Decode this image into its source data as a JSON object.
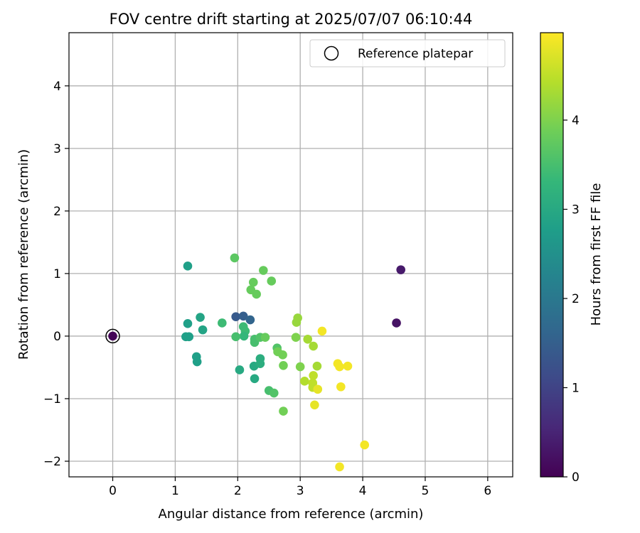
{
  "chart_data": {
    "type": "scatter",
    "title": "FOV centre drift starting at 2025/07/07 06:10:44",
    "xlabel": "Angular distance from reference (arcmin)",
    "ylabel": "Rotation from reference (arcmin)",
    "xlim": [
      -0.7,
      6.4
    ],
    "ylim": [
      -2.25,
      4.85
    ],
    "xticks": [
      0,
      1,
      2,
      3,
      4,
      5,
      6
    ],
    "yticks": [
      -2,
      -1,
      0,
      1,
      2,
      3,
      4
    ],
    "ytick_labels": [
      "−2",
      "−1",
      "0",
      "1",
      "2",
      "3",
      "4"
    ],
    "grid": true,
    "legend_position": "top-right",
    "legend": [
      {
        "label": "Reference platepar",
        "marker": "open-circle",
        "color": "#000000"
      }
    ],
    "reference_point": {
      "x": 0,
      "y": 0,
      "hours": 0
    },
    "colorbar": {
      "label": "Hours from first FF file",
      "range": [
        0,
        4.98
      ],
      "ticks": [
        0,
        1,
        2,
        3,
        4
      ],
      "colormap": "viridis"
    },
    "points": [
      {
        "x": 0.0,
        "y": 0.0,
        "hours": 0.05
      },
      {
        "x": 4.54,
        "y": 0.21,
        "hours": 0.25
      },
      {
        "x": 4.61,
        "y": 1.06,
        "hours": 0.35
      },
      {
        "x": 1.97,
        "y": 0.31,
        "hours": 1.4
      },
      {
        "x": 2.09,
        "y": 0.32,
        "hours": 1.5
      },
      {
        "x": 2.2,
        "y": 0.26,
        "hours": 1.6
      },
      {
        "x": 1.2,
        "y": 1.12,
        "hours": 2.8
      },
      {
        "x": 1.2,
        "y": 0.2,
        "hours": 2.8
      },
      {
        "x": 1.17,
        "y": -0.01,
        "hours": 2.8
      },
      {
        "x": 1.22,
        "y": -0.01,
        "hours": 2.8
      },
      {
        "x": 1.4,
        "y": 0.3,
        "hours": 2.9
      },
      {
        "x": 1.44,
        "y": 0.1,
        "hours": 2.9
      },
      {
        "x": 1.34,
        "y": -0.33,
        "hours": 2.8
      },
      {
        "x": 1.35,
        "y": -0.41,
        "hours": 2.8
      },
      {
        "x": 2.03,
        "y": -0.54,
        "hours": 3.0
      },
      {
        "x": 2.26,
        "y": -0.48,
        "hours": 3.0
      },
      {
        "x": 2.27,
        "y": -0.68,
        "hours": 3.0
      },
      {
        "x": 2.36,
        "y": -0.36,
        "hours": 3.1
      },
      {
        "x": 2.36,
        "y": -0.44,
        "hours": 3.1
      },
      {
        "x": 1.75,
        "y": 0.21,
        "hours": 3.4
      },
      {
        "x": 2.09,
        "y": 0.15,
        "hours": 3.4
      },
      {
        "x": 2.12,
        "y": 0.08,
        "hours": 3.4
      },
      {
        "x": 2.1,
        "y": 0.0,
        "hours": 3.3
      },
      {
        "x": 1.97,
        "y": -0.01,
        "hours": 3.5
      },
      {
        "x": 2.27,
        "y": -0.05,
        "hours": 3.5
      },
      {
        "x": 2.27,
        "y": -0.1,
        "hours": 3.5
      },
      {
        "x": 2.36,
        "y": -0.02,
        "hours": 3.6
      },
      {
        "x": 2.5,
        "y": -0.87,
        "hours": 3.5
      },
      {
        "x": 2.58,
        "y": -0.91,
        "hours": 3.6
      },
      {
        "x": 2.63,
        "y": -0.19,
        "hours": 3.6
      },
      {
        "x": 1.95,
        "y": 1.25,
        "hours": 3.7
      },
      {
        "x": 2.41,
        "y": 1.05,
        "hours": 3.8
      },
      {
        "x": 2.25,
        "y": 0.86,
        "hours": 3.8
      },
      {
        "x": 2.54,
        "y": 0.88,
        "hours": 3.8
      },
      {
        "x": 2.21,
        "y": 0.74,
        "hours": 3.8
      },
      {
        "x": 2.3,
        "y": 0.67,
        "hours": 3.8
      },
      {
        "x": 2.44,
        "y": -0.02,
        "hours": 3.8
      },
      {
        "x": 2.64,
        "y": -0.25,
        "hours": 3.9
      },
      {
        "x": 2.72,
        "y": -0.3,
        "hours": 3.9
      },
      {
        "x": 2.73,
        "y": -0.47,
        "hours": 3.9
      },
      {
        "x": 2.73,
        "y": -1.2,
        "hours": 3.9
      },
      {
        "x": 2.93,
        "y": -0.02,
        "hours": 4.0
      },
      {
        "x": 3.0,
        "y": -0.49,
        "hours": 4.0
      },
      {
        "x": 2.96,
        "y": 0.29,
        "hours": 4.2
      },
      {
        "x": 2.94,
        "y": 0.22,
        "hours": 4.2
      },
      {
        "x": 3.12,
        "y": -0.05,
        "hours": 4.3
      },
      {
        "x": 3.21,
        "y": -0.16,
        "hours": 4.3
      },
      {
        "x": 3.27,
        "y": -0.48,
        "hours": 4.3
      },
      {
        "x": 3.07,
        "y": -0.72,
        "hours": 4.4
      },
      {
        "x": 3.2,
        "y": -0.75,
        "hours": 4.5
      },
      {
        "x": 3.21,
        "y": -0.63,
        "hours": 4.5
      },
      {
        "x": 3.2,
        "y": -0.82,
        "hours": 4.5
      },
      {
        "x": 3.28,
        "y": -0.85,
        "hours": 4.8
      },
      {
        "x": 3.23,
        "y": -1.1,
        "hours": 4.8
      },
      {
        "x": 3.35,
        "y": 0.08,
        "hours": 4.9
      },
      {
        "x": 3.6,
        "y": -0.44,
        "hours": 4.9
      },
      {
        "x": 3.63,
        "y": -0.49,
        "hours": 4.9
      },
      {
        "x": 3.76,
        "y": -0.48,
        "hours": 4.9
      },
      {
        "x": 3.65,
        "y": -0.81,
        "hours": 4.9
      },
      {
        "x": 4.03,
        "y": -1.74,
        "hours": 4.9
      },
      {
        "x": 3.63,
        "y": -2.09,
        "hours": 4.9
      }
    ]
  }
}
